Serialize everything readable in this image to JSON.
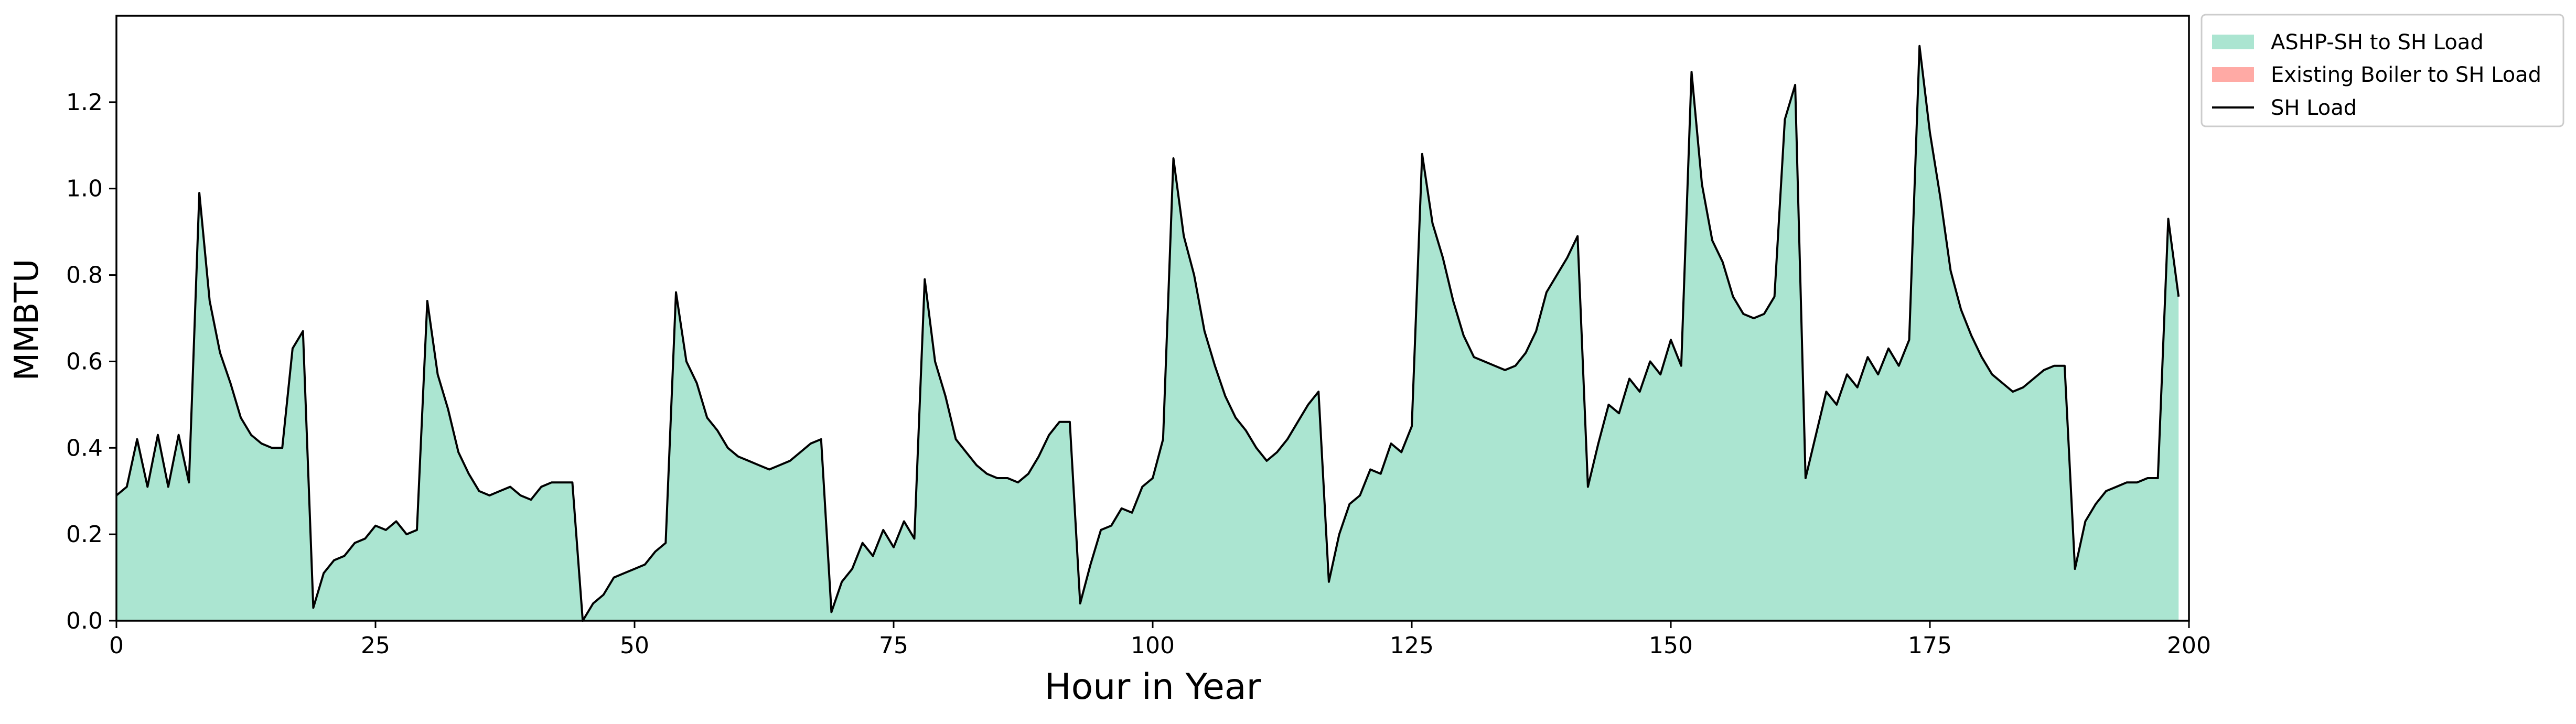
{
  "chart_data": {
    "type": "area",
    "title": "",
    "xlabel": "Hour in Year",
    "ylabel": "MMBTU",
    "xlim": [
      0,
      200
    ],
    "ylim": [
      0,
      1.4
    ],
    "x_ticks": [
      0,
      25,
      50,
      75,
      100,
      125,
      150,
      175,
      200
    ],
    "y_ticks": [
      0.0,
      0.2,
      0.4,
      0.6,
      0.8,
      1.0,
      1.2
    ],
    "x_tick_labels": [
      "0",
      "25",
      "50",
      "75",
      "100",
      "125",
      "150",
      "175",
      "200"
    ],
    "y_tick_labels": [
      "0.0",
      "0.2",
      "0.4",
      "0.6",
      "0.8",
      "1.0",
      "1.2"
    ],
    "grid": false,
    "legend_position": "outside-top-right",
    "series": [
      {
        "name": "ASHP-SH to SH Load",
        "kind": "stacked-area",
        "color": "#abe5d1"
      },
      {
        "name": "Existing Boiler to SH Load",
        "kind": "stacked-area",
        "color": "#ffaaa5"
      },
      {
        "name": "SH Load",
        "kind": "line",
        "color": "#000000"
      }
    ],
    "sh_load": [
      [
        0,
        0.29
      ],
      [
        1,
        0.31
      ],
      [
        2,
        0.42
      ],
      [
        3,
        0.31
      ],
      [
        4,
        0.43
      ],
      [
        5,
        0.31
      ],
      [
        6,
        0.43
      ],
      [
        7,
        0.32
      ],
      [
        8,
        0.99
      ],
      [
        9,
        0.74
      ],
      [
        10,
        0.62
      ],
      [
        11,
        0.55
      ],
      [
        12,
        0.47
      ],
      [
        13,
        0.43
      ],
      [
        14,
        0.41
      ],
      [
        15,
        0.4
      ],
      [
        16,
        0.4
      ],
      [
        17,
        0.63
      ],
      [
        18,
        0.67
      ],
      [
        19,
        0.03
      ],
      [
        20,
        0.11
      ],
      [
        21,
        0.14
      ],
      [
        22,
        0.15
      ],
      [
        23,
        0.18
      ],
      [
        24,
        0.19
      ],
      [
        25,
        0.22
      ],
      [
        26,
        0.21
      ],
      [
        27,
        0.23
      ],
      [
        28,
        0.2
      ],
      [
        29,
        0.21
      ],
      [
        30,
        0.74
      ],
      [
        31,
        0.57
      ],
      [
        32,
        0.49
      ],
      [
        33,
        0.39
      ],
      [
        34,
        0.34
      ],
      [
        35,
        0.3
      ],
      [
        36,
        0.29
      ],
      [
        37,
        0.3
      ],
      [
        38,
        0.31
      ],
      [
        39,
        0.29
      ],
      [
        40,
        0.28
      ],
      [
        41,
        0.31
      ],
      [
        42,
        0.32
      ],
      [
        43,
        0.32
      ],
      [
        44,
        0.32
      ],
      [
        45,
        0.0
      ],
      [
        46,
        0.04
      ],
      [
        47,
        0.06
      ],
      [
        48,
        0.1
      ],
      [
        49,
        0.11
      ],
      [
        50,
        0.12
      ],
      [
        51,
        0.13
      ],
      [
        52,
        0.16
      ],
      [
        53,
        0.18
      ],
      [
        54,
        0.76
      ],
      [
        55,
        0.6
      ],
      [
        56,
        0.55
      ],
      [
        57,
        0.47
      ],
      [
        58,
        0.44
      ],
      [
        59,
        0.4
      ],
      [
        60,
        0.38
      ],
      [
        61,
        0.37
      ],
      [
        62,
        0.36
      ],
      [
        63,
        0.35
      ],
      [
        64,
        0.36
      ],
      [
        65,
        0.37
      ],
      [
        66,
        0.39
      ],
      [
        67,
        0.41
      ],
      [
        68,
        0.42
      ],
      [
        69,
        0.02
      ],
      [
        70,
        0.09
      ],
      [
        71,
        0.12
      ],
      [
        72,
        0.18
      ],
      [
        73,
        0.15
      ],
      [
        74,
        0.21
      ],
      [
        75,
        0.17
      ],
      [
        76,
        0.23
      ],
      [
        77,
        0.19
      ],
      [
        78,
        0.79
      ],
      [
        79,
        0.6
      ],
      [
        80,
        0.52
      ],
      [
        81,
        0.42
      ],
      [
        82,
        0.39
      ],
      [
        83,
        0.36
      ],
      [
        84,
        0.34
      ],
      [
        85,
        0.33
      ],
      [
        86,
        0.33
      ],
      [
        87,
        0.32
      ],
      [
        88,
        0.34
      ],
      [
        89,
        0.38
      ],
      [
        90,
        0.43
      ],
      [
        91,
        0.46
      ],
      [
        92,
        0.46
      ],
      [
        93,
        0.04
      ],
      [
        94,
        0.13
      ],
      [
        95,
        0.21
      ],
      [
        96,
        0.22
      ],
      [
        97,
        0.26
      ],
      [
        98,
        0.25
      ],
      [
        99,
        0.31
      ],
      [
        100,
        0.33
      ],
      [
        101,
        0.42
      ],
      [
        102,
        1.07
      ],
      [
        103,
        0.89
      ],
      [
        104,
        0.8
      ],
      [
        105,
        0.67
      ],
      [
        106,
        0.59
      ],
      [
        107,
        0.52
      ],
      [
        108,
        0.47
      ],
      [
        109,
        0.44
      ],
      [
        110,
        0.4
      ],
      [
        111,
        0.37
      ],
      [
        112,
        0.39
      ],
      [
        113,
        0.42
      ],
      [
        114,
        0.46
      ],
      [
        115,
        0.5
      ],
      [
        116,
        0.53
      ],
      [
        117,
        0.09
      ],
      [
        118,
        0.2
      ],
      [
        119,
        0.27
      ],
      [
        120,
        0.29
      ],
      [
        121,
        0.35
      ],
      [
        122,
        0.34
      ],
      [
        123,
        0.41
      ],
      [
        124,
        0.39
      ],
      [
        125,
        0.45
      ],
      [
        126,
        1.08
      ],
      [
        127,
        0.92
      ],
      [
        128,
        0.84
      ],
      [
        129,
        0.74
      ],
      [
        130,
        0.66
      ],
      [
        131,
        0.61
      ],
      [
        132,
        0.6
      ],
      [
        133,
        0.59
      ],
      [
        134,
        0.58
      ],
      [
        135,
        0.59
      ],
      [
        136,
        0.62
      ],
      [
        137,
        0.67
      ],
      [
        138,
        0.76
      ],
      [
        139,
        0.8
      ],
      [
        140,
        0.84
      ],
      [
        141,
        0.89
      ],
      [
        142,
        0.31
      ],
      [
        143,
        0.41
      ],
      [
        144,
        0.5
      ],
      [
        145,
        0.48
      ],
      [
        146,
        0.56
      ],
      [
        147,
        0.53
      ],
      [
        148,
        0.6
      ],
      [
        149,
        0.57
      ],
      [
        150,
        0.65
      ],
      [
        151,
        0.59
      ],
      [
        152,
        1.27
      ],
      [
        153,
        1.01
      ],
      [
        154,
        0.88
      ],
      [
        155,
        0.83
      ],
      [
        156,
        0.75
      ],
      [
        157,
        0.71
      ],
      [
        158,
        0.7
      ],
      [
        159,
        0.71
      ],
      [
        160,
        0.75
      ],
      [
        161,
        1.16
      ],
      [
        162,
        1.24
      ],
      [
        163,
        0.33
      ],
      [
        164,
        0.43
      ],
      [
        165,
        0.53
      ],
      [
        166,
        0.5
      ],
      [
        167,
        0.57
      ],
      [
        168,
        0.54
      ],
      [
        169,
        0.61
      ],
      [
        170,
        0.57
      ],
      [
        171,
        0.63
      ],
      [
        172,
        0.59
      ],
      [
        173,
        0.65
      ],
      [
        174,
        1.33
      ],
      [
        175,
        1.13
      ],
      [
        176,
        0.98
      ],
      [
        177,
        0.81
      ],
      [
        178,
        0.72
      ],
      [
        179,
        0.66
      ],
      [
        180,
        0.61
      ],
      [
        181,
        0.57
      ],
      [
        182,
        0.55
      ],
      [
        183,
        0.53
      ],
      [
        184,
        0.54
      ],
      [
        185,
        0.56
      ],
      [
        186,
        0.58
      ],
      [
        187,
        0.59
      ],
      [
        188,
        0.59
      ],
      [
        189,
        0.12
      ],
      [
        190,
        0.23
      ],
      [
        191,
        0.27
      ],
      [
        192,
        0.3
      ],
      [
        193,
        0.31
      ],
      [
        194,
        0.32
      ],
      [
        195,
        0.32
      ],
      [
        196,
        0.33
      ],
      [
        197,
        0.33
      ],
      [
        198,
        0.93
      ],
      [
        199,
        0.75
      ]
    ]
  }
}
